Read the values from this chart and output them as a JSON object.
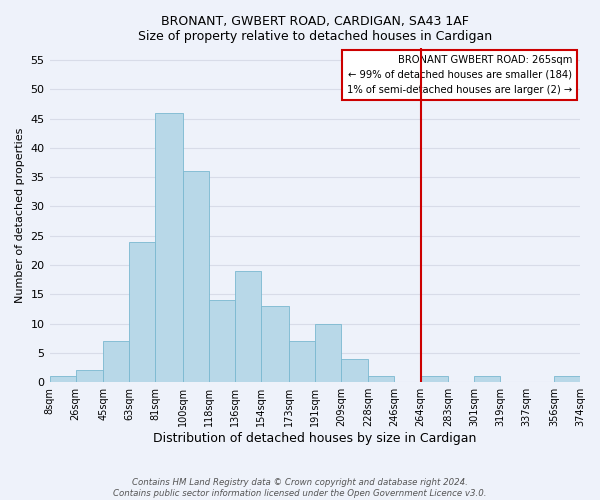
{
  "title": "BRONANT, GWBERT ROAD, CARDIGAN, SA43 1AF",
  "subtitle": "Size of property relative to detached houses in Cardigan",
  "xlabel": "Distribution of detached houses by size in Cardigan",
  "ylabel": "Number of detached properties",
  "bin_edges": [
    8,
    26,
    45,
    63,
    81,
    100,
    118,
    136,
    154,
    173,
    191,
    209,
    228,
    246,
    264,
    283,
    301,
    319,
    337,
    356,
    374
  ],
  "counts": [
    1,
    2,
    7,
    24,
    46,
    36,
    14,
    19,
    13,
    7,
    10,
    4,
    1,
    0,
    1,
    0,
    1,
    0,
    0,
    1
  ],
  "bar_color": "#b8d8e8",
  "bar_edge_color": "#7ab8d0",
  "vline_x": 264,
  "vline_color": "#cc0000",
  "ylim": [
    0,
    57
  ],
  "yticks": [
    0,
    5,
    10,
    15,
    20,
    25,
    30,
    35,
    40,
    45,
    50,
    55
  ],
  "legend_title": "BRONANT GWBERT ROAD: 265sqm",
  "legend_line1": "← 99% of detached houses are smaller (184)",
  "legend_line2": "1% of semi-detached houses are larger (2) →",
  "legend_box_color": "#ffffff",
  "legend_box_edge": "#cc0000",
  "tick_labels": [
    "8sqm",
    "26sqm",
    "45sqm",
    "63sqm",
    "81sqm",
    "100sqm",
    "118sqm",
    "136sqm",
    "154sqm",
    "173sqm",
    "191sqm",
    "209sqm",
    "228sqm",
    "246sqm",
    "264sqm",
    "283sqm",
    "301sqm",
    "319sqm",
    "337sqm",
    "356sqm",
    "374sqm"
  ],
  "footnote1": "Contains HM Land Registry data © Crown copyright and database right 2024.",
  "footnote2": "Contains public sector information licensed under the Open Government Licence v3.0.",
  "bg_color": "#eef2fa",
  "grid_color": "#d8dce8"
}
